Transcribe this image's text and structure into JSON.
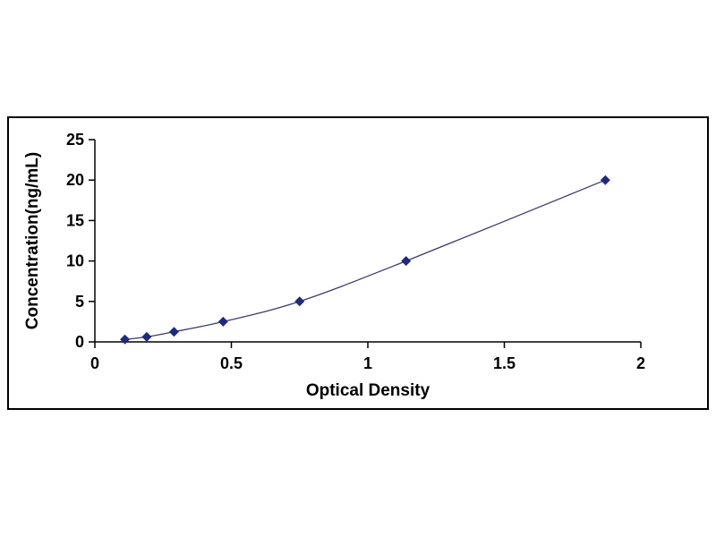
{
  "chart_data": {
    "type": "scatter",
    "title": "",
    "xlabel": "Optical Density",
    "ylabel": "Concentration(ng/mL)",
    "series": [
      {
        "name": "standard-curve",
        "x": [
          0.11,
          0.19,
          0.29,
          0.47,
          0.75,
          1.14,
          1.87
        ],
        "y": [
          0.31,
          0.62,
          1.25,
          2.5,
          5,
          10,
          20
        ]
      }
    ],
    "xlim": [
      0,
      2
    ],
    "ylim": [
      0,
      25
    ],
    "xticks": [
      0,
      0.5,
      1,
      1.5,
      2
    ],
    "yticks": [
      0,
      5,
      10,
      15,
      20,
      25
    ],
    "grid": false,
    "legend": "none",
    "marker": "diamond",
    "colors": {
      "marker": "#1f2a7d",
      "line": "#3c3c6e",
      "axis": "#000000",
      "text": "#000000",
      "frame_border": "#000000",
      "background": "#ffffff"
    }
  }
}
